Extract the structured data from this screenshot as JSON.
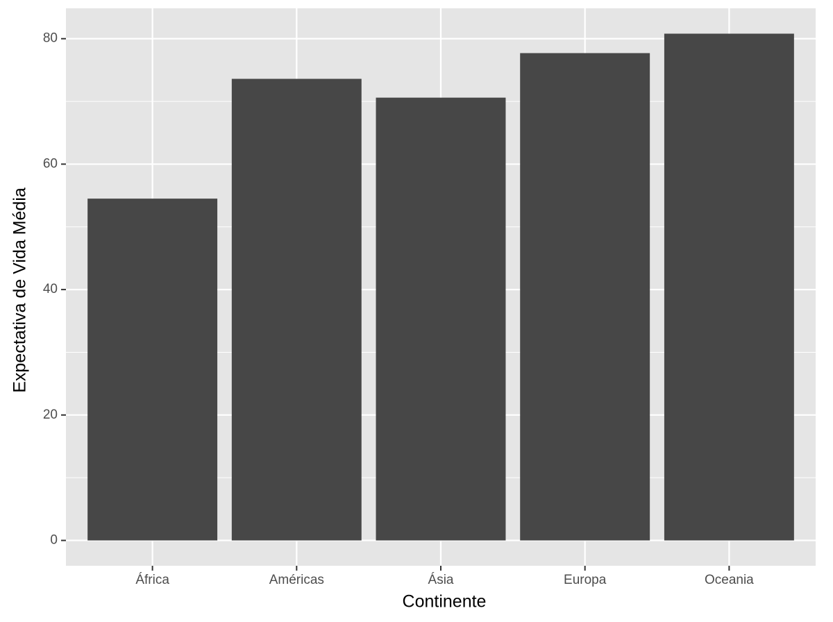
{
  "chart_data": {
    "type": "bar",
    "x_label": "Continente",
    "y_label": "Expectativa de Vida Média",
    "categories": [
      "África",
      "Américas",
      "Ásia",
      "Europa",
      "Oceania"
    ],
    "values": [
      54.5,
      73.6,
      70.6,
      77.7,
      80.8
    ],
    "color": "#474747",
    "ylim": [
      -4.04,
      84.84
    ],
    "yticks": [
      0,
      20,
      40,
      60,
      80
    ],
    "minor_yticks": [
      10,
      30,
      50,
      70
    ],
    "grid": true,
    "panel_color": "#e5e5e5"
  }
}
